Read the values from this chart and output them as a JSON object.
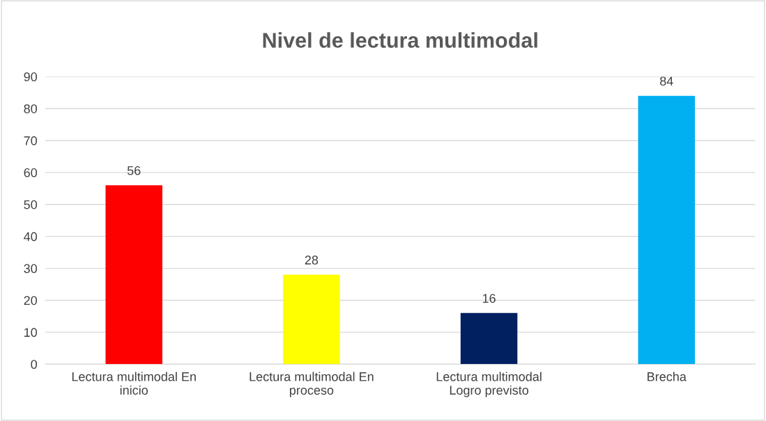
{
  "chart_data": {
    "type": "bar",
    "title": "Nivel de lectura multimodal",
    "categories": [
      "Lectura multimodal En inicio",
      "Lectura multimodal En proceso",
      "Lectura multimodal Logro previsto",
      "Brecha"
    ],
    "values": [
      56,
      28,
      16,
      84
    ],
    "colors": [
      "#ff0000",
      "#ffff00",
      "#002060",
      "#00b0f0"
    ],
    "ylim": [
      0,
      90
    ],
    "yticks": [
      0,
      10,
      20,
      30,
      40,
      50,
      60,
      70,
      80,
      90
    ],
    "grid": "y",
    "data_labels": true
  }
}
